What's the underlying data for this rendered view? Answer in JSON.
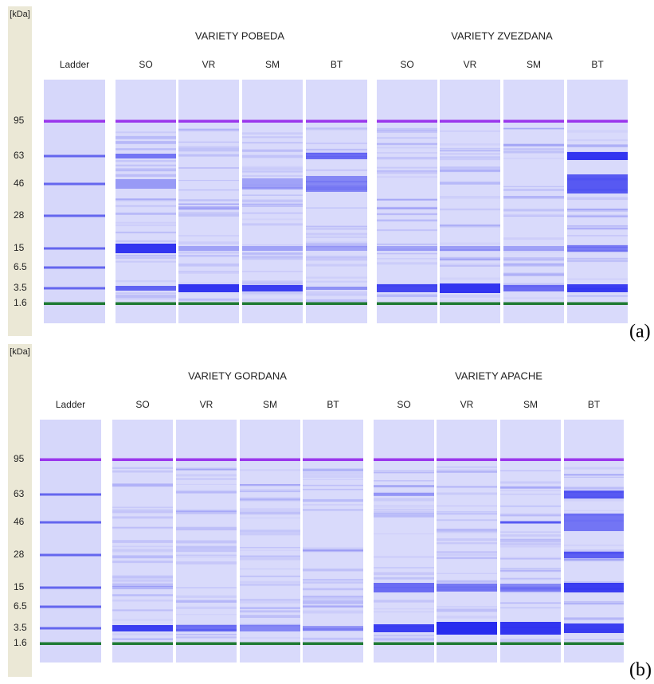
{
  "panels": [
    {
      "label": "(a)",
      "unit": "[kDa]",
      "ladder_lane": "Ladder",
      "ladder_marks": [
        "95",
        "63",
        "46",
        "28",
        "15",
        "6.5",
        "3.5",
        "1.6"
      ],
      "groups": [
        {
          "title": "VARIETY POBEDA",
          "lanes": [
            "SO",
            "VR",
            "SM",
            "BT"
          ]
        },
        {
          "title": "VARIETY ZVEZDANA",
          "lanes": [
            "SO",
            "VR",
            "SM",
            "BT"
          ]
        }
      ]
    },
    {
      "label": "(b)",
      "unit": "[kDa]",
      "ladder_lane": "Ladder",
      "ladder_marks": [
        "95",
        "63",
        "46",
        "28",
        "15",
        "6.5",
        "3.5",
        "1.6"
      ],
      "groups": [
        {
          "title": "VARIETY GORDANA",
          "lanes": [
            "SO",
            "VR",
            "SM",
            "BT"
          ]
        },
        {
          "title": "VARIETY APACHE",
          "lanes": [
            "SO",
            "VR",
            "SM",
            "BT"
          ]
        }
      ]
    }
  ]
}
